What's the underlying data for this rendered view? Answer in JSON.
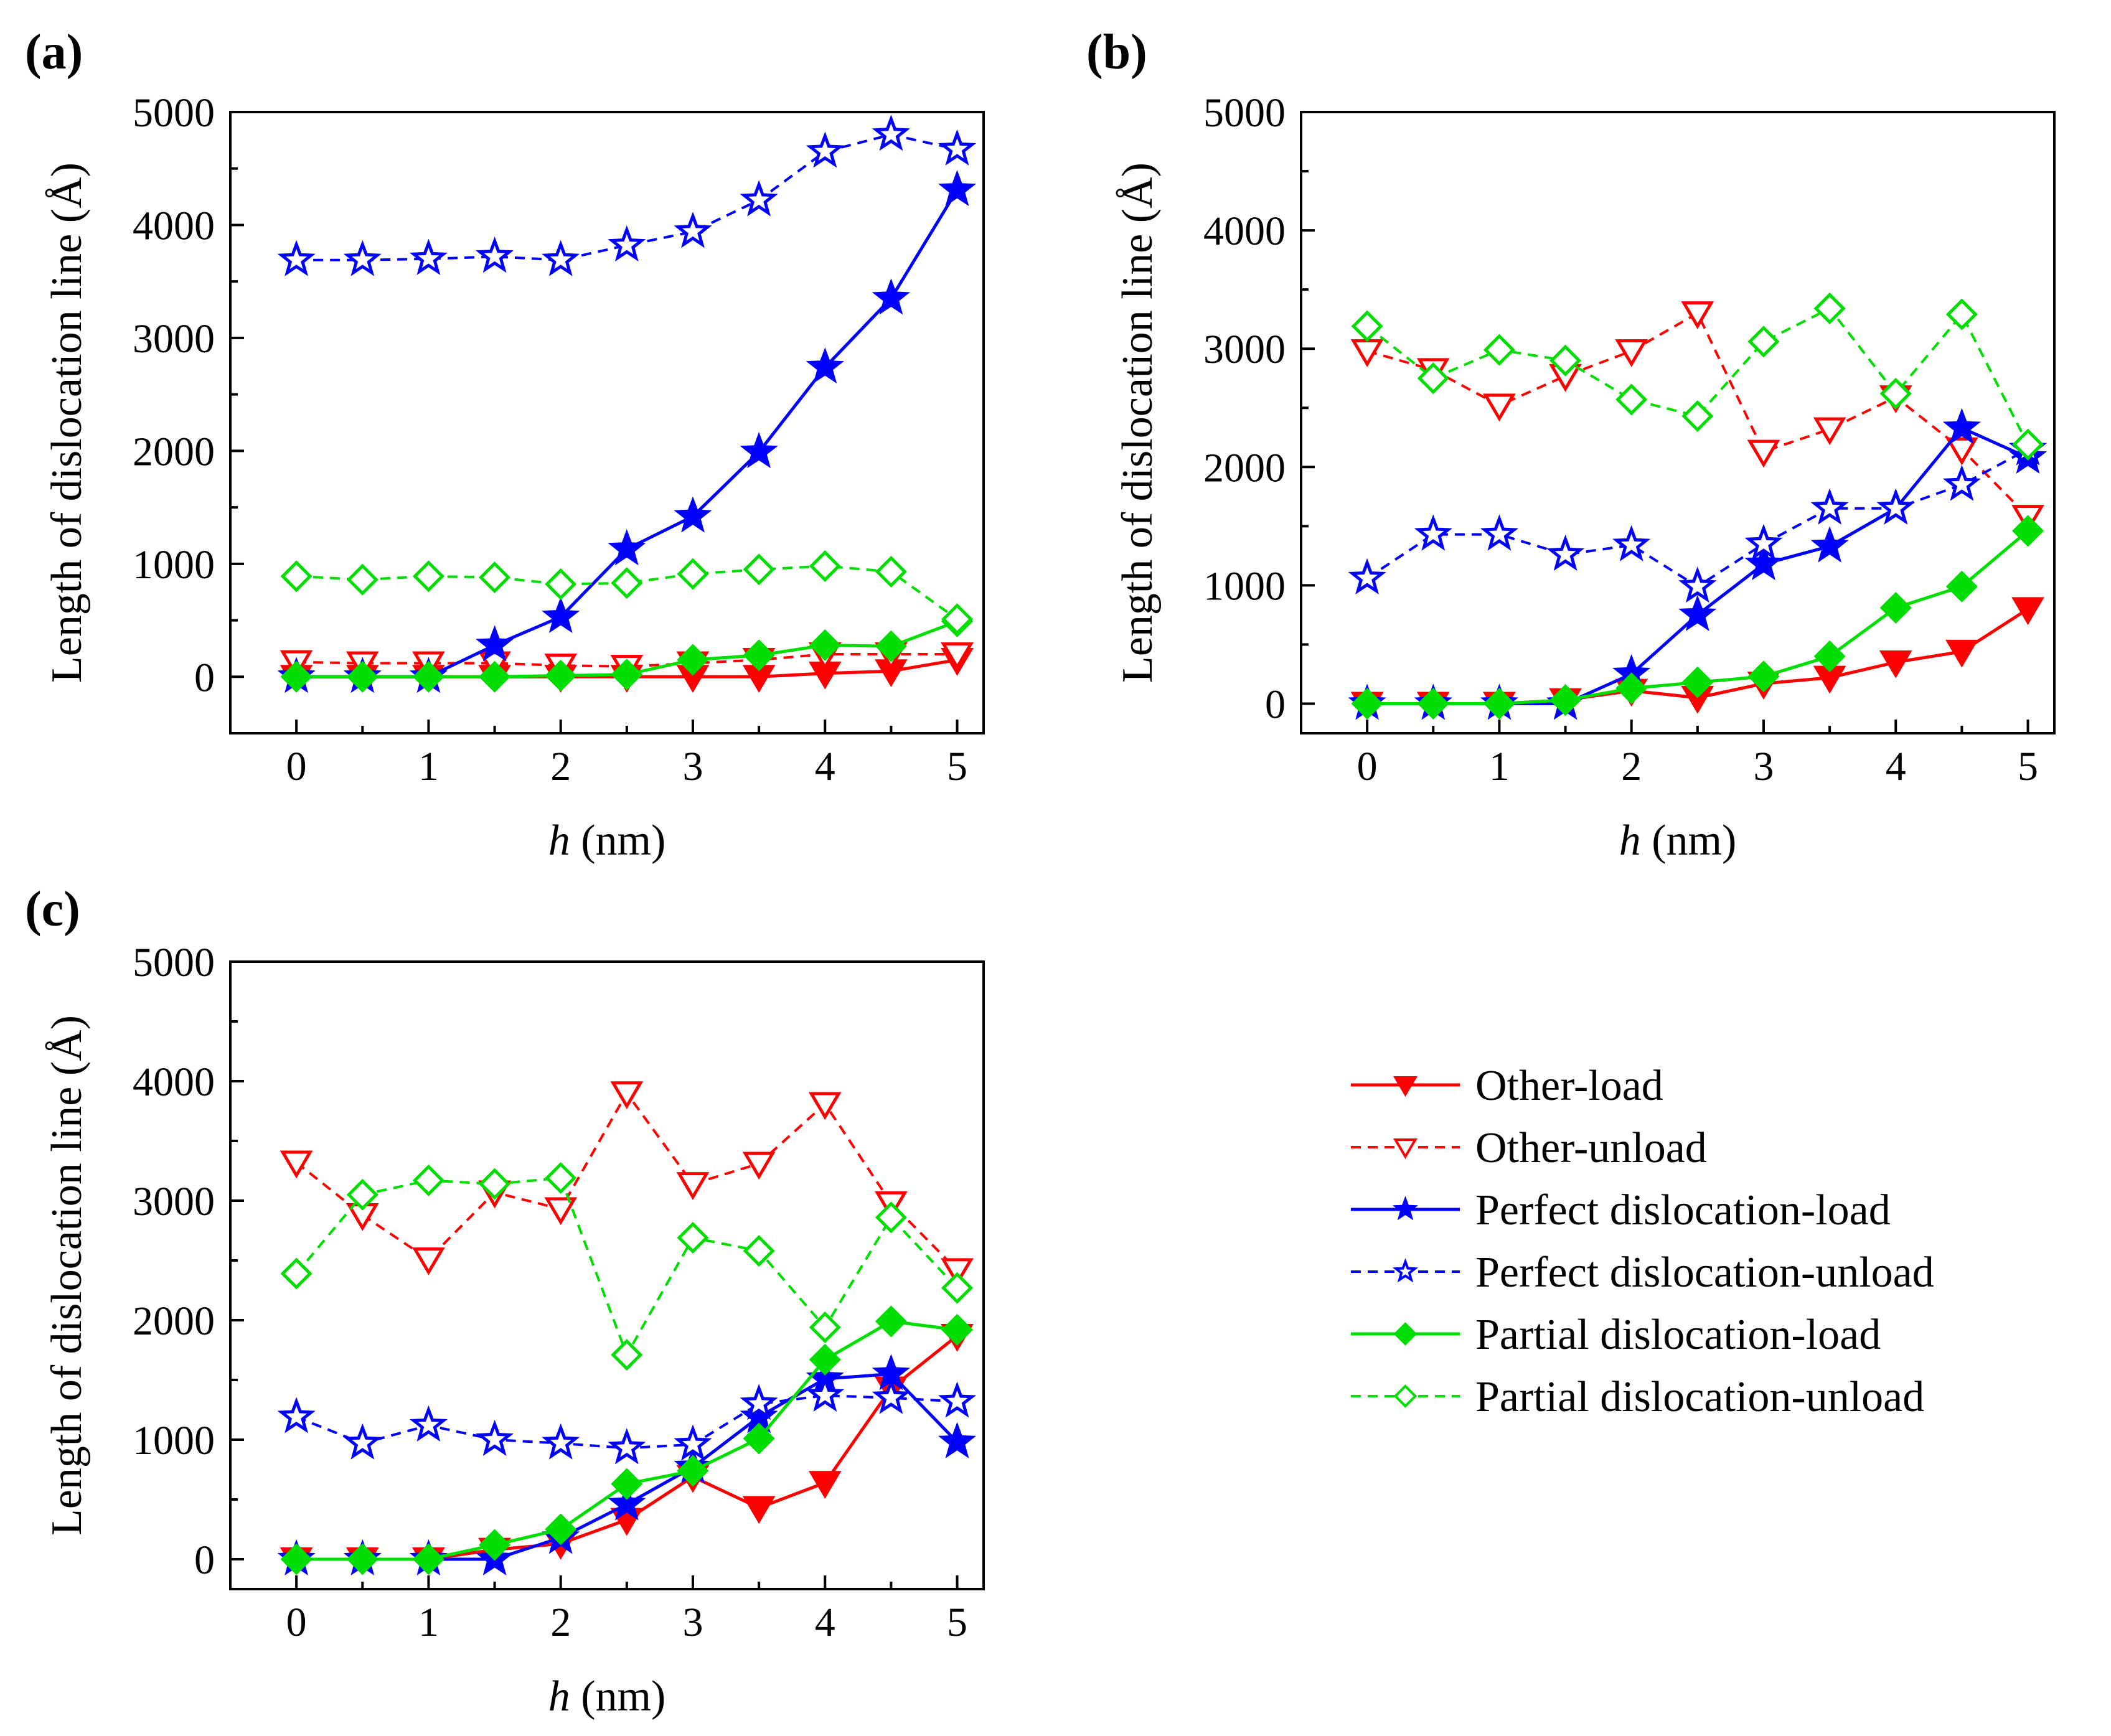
{
  "figure": {
    "legend": {
      "placement": "lower-right",
      "entries": [
        {
          "key": "other_load",
          "label": "Other-load"
        },
        {
          "key": "other_unload",
          "label": "Other-unload"
        },
        {
          "key": "perfect_load",
          "label": "Perfect dislocation-load"
        },
        {
          "key": "perfect_unload",
          "label": "Perfect dislocation-unload"
        },
        {
          "key": "partial_load",
          "label": "Partial dislocation-load"
        },
        {
          "key": "partial_unload",
          "label": "Partial dislocation-unload"
        }
      ]
    },
    "series_styles": {
      "other_load": {
        "color": "#ff0000",
        "dashed": false,
        "marker": "triangle-down",
        "filled": true
      },
      "other_unload": {
        "color": "#ff0000",
        "dashed": true,
        "marker": "triangle-down",
        "filled": false
      },
      "perfect_load": {
        "color": "#0000ff",
        "dashed": false,
        "marker": "star",
        "filled": true
      },
      "perfect_unload": {
        "color": "#0000ff",
        "dashed": true,
        "marker": "star",
        "filled": false
      },
      "partial_load": {
        "color": "#00dd00",
        "dashed": false,
        "marker": "diamond",
        "filled": true
      },
      "partial_unload": {
        "color": "#00dd00",
        "dashed": true,
        "marker": "diamond",
        "filled": false
      }
    }
  },
  "chart_data": [
    {
      "panel": "(a)",
      "type": "line",
      "xlabel_italic": "h",
      "xlabel_rest": " (nm)",
      "ylabel": "Length of dislocation line (Å)",
      "xlim": [
        -0.5,
        5.2
      ],
      "ylim": [
        -500,
        5000
      ],
      "xticks": [
        0,
        1,
        2,
        3,
        4,
        5
      ],
      "yticks": [
        0,
        1000,
        2000,
        3000,
        4000,
        5000
      ],
      "x": [
        0,
        0.5,
        1,
        1.5,
        2,
        2.5,
        3,
        3.5,
        4,
        4.5,
        5
      ],
      "series": [
        {
          "key": "other_load",
          "name": "Other-load",
          "values": [
            0,
            0,
            0,
            0,
            0,
            0,
            0,
            0,
            30,
            50,
            150
          ]
        },
        {
          "key": "other_unload",
          "name": "Other-unload",
          "values": [
            130,
            120,
            120,
            120,
            100,
            90,
            120,
            150,
            200,
            200,
            200
          ]
        },
        {
          "key": "perfect_load",
          "name": "Perfect dislocation-load",
          "values": [
            0,
            0,
            0,
            280,
            530,
            1130,
            1420,
            1990,
            2740,
            3350,
            4310
          ]
        },
        {
          "key": "perfect_unload",
          "name": "Perfect dislocation-unload",
          "values": [
            3690,
            3690,
            3700,
            3720,
            3690,
            3820,
            3940,
            4220,
            4650,
            4800,
            4670
          ]
        },
        {
          "key": "partial_load",
          "name": "Partial dislocation-load",
          "values": [
            0,
            0,
            0,
            0,
            10,
            20,
            150,
            190,
            280,
            270,
            490
          ]
        },
        {
          "key": "partial_unload",
          "name": "Partial dislocation-unload",
          "values": [
            890,
            860,
            890,
            880,
            820,
            830,
            910,
            950,
            980,
            930,
            510
          ]
        }
      ]
    },
    {
      "panel": "(b)",
      "type": "line",
      "xlabel_italic": "h",
      "xlabel_rest": " (nm)",
      "ylabel": "Length of dislocation line (Å)",
      "xlim": [
        -0.5,
        5.2
      ],
      "ylim": [
        -250,
        5000
      ],
      "xticks": [
        0,
        1,
        2,
        3,
        4,
        5
      ],
      "yticks": [
        0,
        1000,
        2000,
        3000,
        4000,
        5000
      ],
      "x": [
        0,
        0.5,
        1,
        1.5,
        2,
        2.5,
        3,
        3.5,
        4,
        4.5,
        5
      ],
      "series": [
        {
          "key": "other_load",
          "name": "Other-load",
          "values": [
            0,
            0,
            0,
            30,
            110,
            50,
            170,
            220,
            350,
            440,
            800
          ]
        },
        {
          "key": "other_unload",
          "name": "Other-unload",
          "values": [
            2980,
            2820,
            2520,
            2770,
            2980,
            3300,
            2130,
            2320,
            2590,
            2150,
            1580
          ]
        },
        {
          "key": "perfect_load",
          "name": "Perfect dislocation-load",
          "values": [
            0,
            0,
            0,
            0,
            250,
            750,
            1180,
            1330,
            1650,
            2330,
            2080
          ]
        },
        {
          "key": "perfect_unload",
          "name": "Perfect dislocation-unload",
          "values": [
            1060,
            1430,
            1430,
            1260,
            1340,
            990,
            1350,
            1650,
            1650,
            1850,
            2150
          ]
        },
        {
          "key": "partial_load",
          "name": "Partial dislocation-load",
          "values": [
            0,
            0,
            0,
            30,
            130,
            180,
            230,
            400,
            810,
            990,
            1460
          ]
        },
        {
          "key": "partial_unload",
          "name": "Partial dislocation-unload",
          "values": [
            3190,
            2750,
            2990,
            2900,
            2570,
            2430,
            3060,
            3340,
            2620,
            3290,
            2190
          ]
        }
      ]
    },
    {
      "panel": "(c)",
      "type": "line",
      "xlabel_italic": "h",
      "xlabel_rest": " (nm)",
      "ylabel": "Length of dislocation line (Å)",
      "xlim": [
        -0.5,
        5.2
      ],
      "ylim": [
        -250,
        5000
      ],
      "xticks": [
        0,
        1,
        2,
        3,
        4,
        5
      ],
      "yticks": [
        0,
        1000,
        2000,
        3000,
        4000,
        5000
      ],
      "x": [
        0,
        0.5,
        1,
        1.5,
        2,
        2.5,
        3,
        3.5,
        4,
        4.5,
        5
      ],
      "series": [
        {
          "key": "other_load",
          "name": "Other-load",
          "values": [
            0,
            0,
            0,
            80,
            130,
            330,
            690,
            430,
            640,
            1430,
            1870
          ]
        },
        {
          "key": "other_unload",
          "name": "Other-unload",
          "values": [
            3320,
            2880,
            2510,
            3070,
            2930,
            3900,
            3140,
            3310,
            3810,
            2980,
            2420
          ]
        },
        {
          "key": "perfect_load",
          "name": "Perfect dislocation-load",
          "values": [
            0,
            0,
            0,
            0,
            180,
            460,
            770,
            1190,
            1510,
            1550,
            980
          ]
        },
        {
          "key": "perfect_unload",
          "name": "Perfect dislocation-unload",
          "values": [
            1190,
            970,
            1120,
            1000,
            970,
            930,
            960,
            1300,
            1370,
            1350,
            1320
          ]
        },
        {
          "key": "partial_load",
          "name": "Partial dislocation-load",
          "values": [
            0,
            0,
            0,
            120,
            250,
            630,
            740,
            1010,
            1670,
            1990,
            1920
          ]
        },
        {
          "key": "partial_unload",
          "name": "Partial dislocation-unload",
          "values": [
            2390,
            3050,
            3170,
            3140,
            3190,
            1710,
            2690,
            2580,
            1940,
            2860,
            2270
          ]
        }
      ]
    }
  ]
}
